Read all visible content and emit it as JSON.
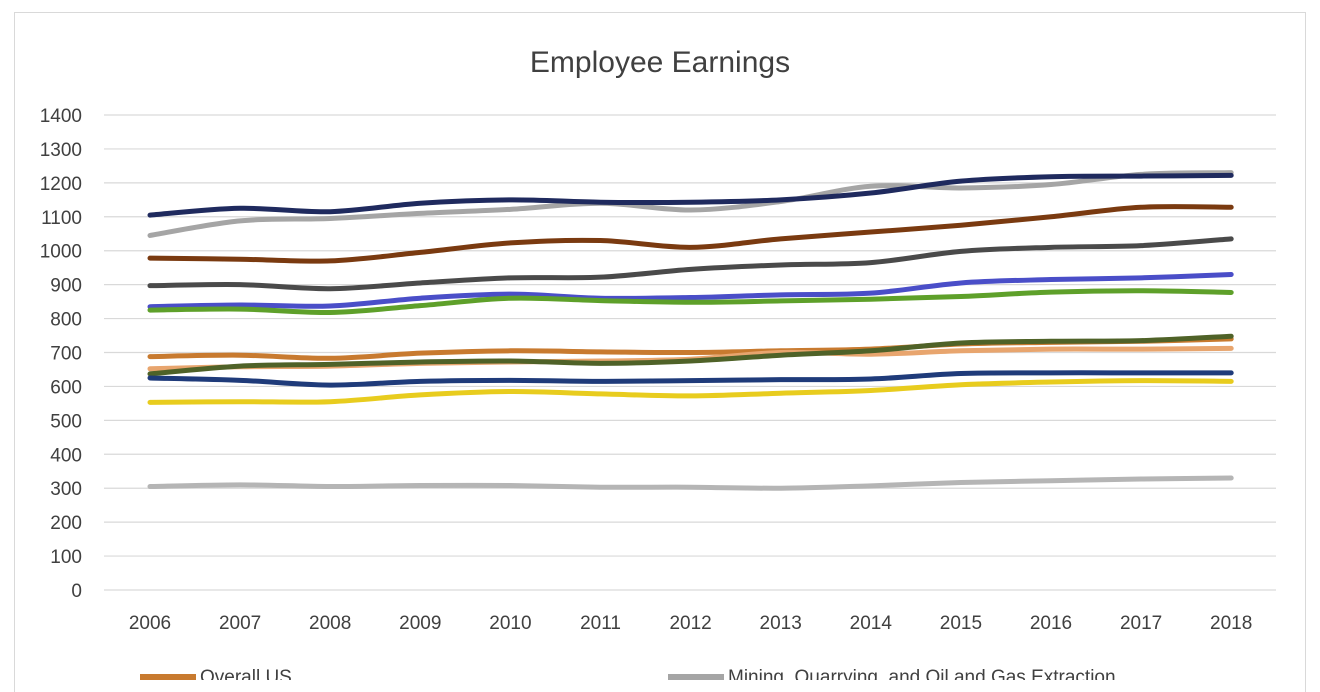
{
  "chart_data": {
    "type": "line",
    "title": "Employee Earnings",
    "xlabel": "",
    "ylabel": "",
    "x": [
      "2006",
      "2007",
      "2008",
      "2009",
      "2010",
      "2011",
      "2012",
      "2013",
      "2014",
      "2015",
      "2016",
      "2017",
      "2018"
    ],
    "ylim": [
      0,
      1400
    ],
    "yticks": [
      0,
      100,
      200,
      300,
      400,
      500,
      600,
      700,
      800,
      900,
      1000,
      1100,
      1200,
      1300,
      1400
    ],
    "grid": true,
    "legend_position": "bottom",
    "series": [
      {
        "name": "Overall US",
        "color": "#c87a2f",
        "values": [
          688,
          692,
          683,
          698,
          705,
          702,
          700,
          705,
          710,
          725,
          730,
          733,
          740
        ],
        "legend_visible": true
      },
      {
        "name": "Mining, Quarrying, and Oil and Gas Extraction",
        "color": "#a5a5a5",
        "values": [
          1045,
          1088,
          1095,
          1110,
          1122,
          1140,
          1120,
          1145,
          1190,
          1185,
          1195,
          1225,
          1230
        ],
        "legend_visible": true
      },
      {
        "color": "#1f2a5e",
        "values": [
          1105,
          1125,
          1115,
          1140,
          1150,
          1143,
          1143,
          1150,
          1170,
          1205,
          1218,
          1220,
          1222
        ],
        "legend_visible": false
      },
      {
        "color": "#7a3a10",
        "values": [
          978,
          975,
          970,
          995,
          1023,
          1030,
          1010,
          1035,
          1055,
          1075,
          1100,
          1128,
          1128
        ],
        "legend_visible": false
      },
      {
        "color": "#4a4a4a",
        "values": [
          897,
          900,
          888,
          905,
          920,
          922,
          945,
          958,
          965,
          998,
          1010,
          1015,
          1035
        ],
        "legend_visible": false
      },
      {
        "color": "#4a4ec8",
        "values": [
          835,
          840,
          837,
          860,
          872,
          860,
          862,
          870,
          875,
          905,
          915,
          920,
          930
        ],
        "legend_visible": false
      },
      {
        "color": "#5ea02a",
        "values": [
          825,
          828,
          818,
          838,
          860,
          853,
          848,
          852,
          857,
          865,
          878,
          882,
          877
        ],
        "legend_visible": false
      },
      {
        "color": "#e8a56e",
        "values": [
          652,
          658,
          660,
          668,
          672,
          675,
          680,
          700,
          695,
          705,
          710,
          710,
          712
        ],
        "legend_visible": false
      },
      {
        "color": "#4f6228",
        "values": [
          637,
          660,
          665,
          672,
          675,
          668,
          675,
          692,
          705,
          728,
          733,
          735,
          748
        ],
        "legend_visible": false
      },
      {
        "color": "#1f3b7a",
        "values": [
          625,
          618,
          604,
          615,
          618,
          615,
          617,
          620,
          622,
          638,
          640,
          640,
          640
        ],
        "legend_visible": false
      },
      {
        "color": "#e8cc1e",
        "values": [
          553,
          555,
          555,
          575,
          585,
          578,
          572,
          580,
          588,
          605,
          613,
          617,
          615
        ],
        "legend_visible": false
      },
      {
        "color": "#b5b5b5",
        "values": [
          305,
          310,
          305,
          308,
          308,
          303,
          303,
          300,
          307,
          317,
          322,
          327,
          330
        ],
        "legend_visible": false
      }
    ]
  }
}
